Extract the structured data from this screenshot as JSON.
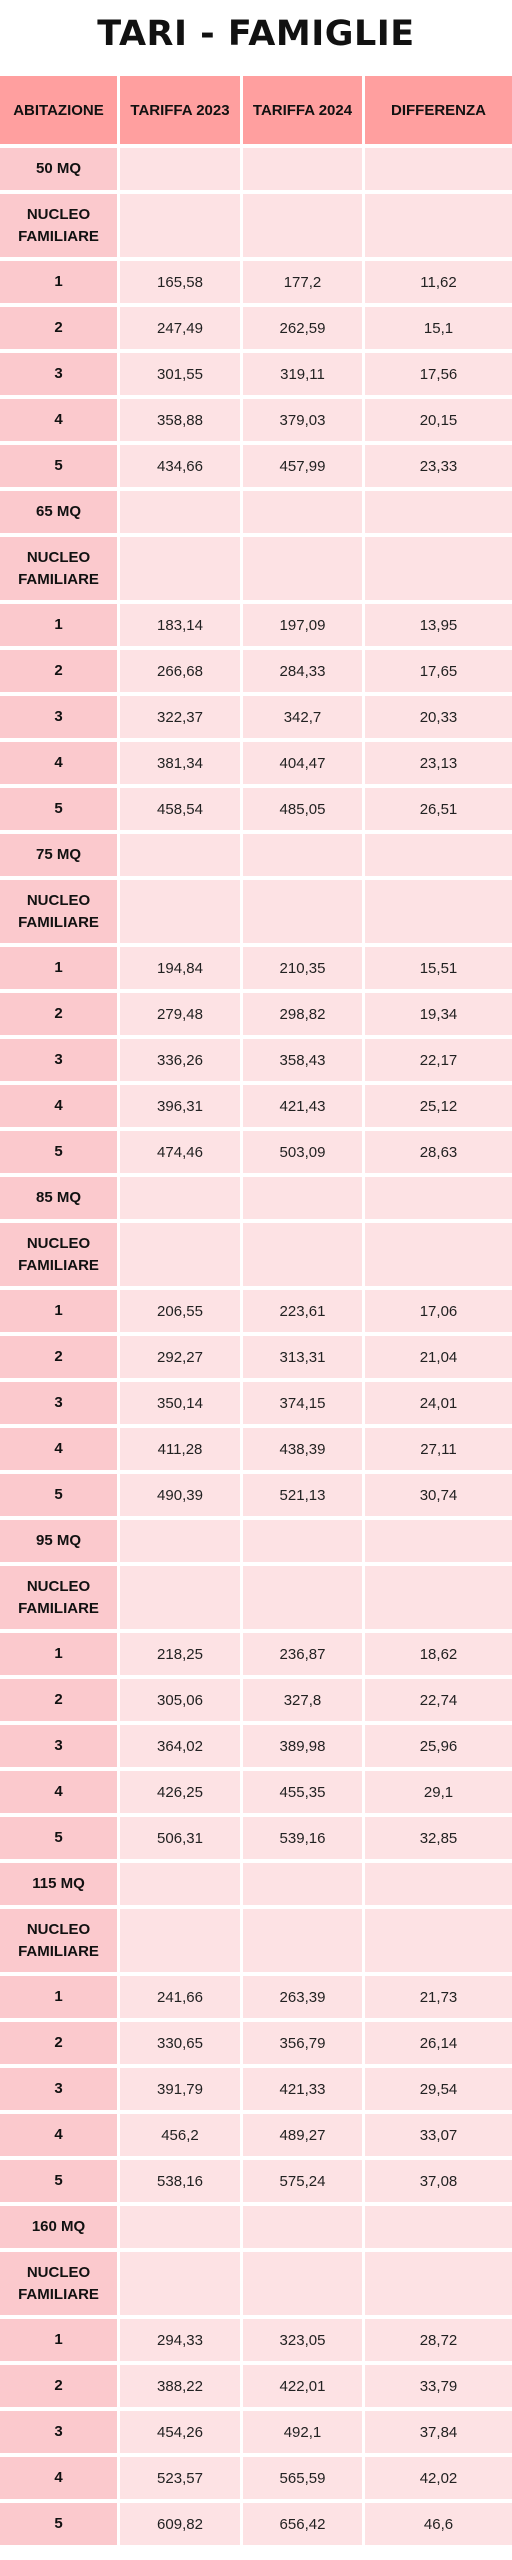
{
  "title": "TARI - FAMIGLIE",
  "colors": {
    "header": "#ff9f9f",
    "first_column": "#fbc9cd",
    "cells": "#fde2e4"
  },
  "headers": [
    "ABITAZIONE",
    "TARIFFA 2023",
    "TARIFFA 2024",
    "DIFFERENZA"
  ],
  "nucleo_label": "NUCLEO FAMILIARE",
  "sections": [
    {
      "size": "50 MQ",
      "rows": [
        {
          "n": "1",
          "t2023": "165,58",
          "t2024": "177,2",
          "diff": "11,62"
        },
        {
          "n": "2",
          "t2023": "247,49",
          "t2024": "262,59",
          "diff": "15,1"
        },
        {
          "n": "3",
          "t2023": "301,55",
          "t2024": "319,11",
          "diff": "17,56"
        },
        {
          "n": "4",
          "t2023": "358,88",
          "t2024": "379,03",
          "diff": "20,15"
        },
        {
          "n": "5",
          "t2023": "434,66",
          "t2024": "457,99",
          "diff": "23,33"
        }
      ]
    },
    {
      "size": "65 MQ",
      "rows": [
        {
          "n": "1",
          "t2023": "183,14",
          "t2024": "197,09",
          "diff": "13,95"
        },
        {
          "n": "2",
          "t2023": "266,68",
          "t2024": "284,33",
          "diff": "17,65"
        },
        {
          "n": "3",
          "t2023": "322,37",
          "t2024": "342,7",
          "diff": "20,33"
        },
        {
          "n": "4",
          "t2023": "381,34",
          "t2024": "404,47",
          "diff": "23,13"
        },
        {
          "n": "5",
          "t2023": "458,54",
          "t2024": "485,05",
          "diff": "26,51"
        }
      ]
    },
    {
      "size": "75 MQ",
      "rows": [
        {
          "n": "1",
          "t2023": "194,84",
          "t2024": "210,35",
          "diff": "15,51"
        },
        {
          "n": "2",
          "t2023": "279,48",
          "t2024": "298,82",
          "diff": "19,34"
        },
        {
          "n": "3",
          "t2023": "336,26",
          "t2024": "358,43",
          "diff": "22,17"
        },
        {
          "n": "4",
          "t2023": "396,31",
          "t2024": "421,43",
          "diff": "25,12"
        },
        {
          "n": "5",
          "t2023": "474,46",
          "t2024": "503,09",
          "diff": "28,63"
        }
      ]
    },
    {
      "size": "85 MQ",
      "rows": [
        {
          "n": "1",
          "t2023": "206,55",
          "t2024": "223,61",
          "diff": "17,06"
        },
        {
          "n": "2",
          "t2023": "292,27",
          "t2024": "313,31",
          "diff": "21,04"
        },
        {
          "n": "3",
          "t2023": "350,14",
          "t2024": "374,15",
          "diff": "24,01"
        },
        {
          "n": "4",
          "t2023": "411,28",
          "t2024": "438,39",
          "diff": "27,11"
        },
        {
          "n": "5",
          "t2023": "490,39",
          "t2024": "521,13",
          "diff": "30,74"
        }
      ]
    },
    {
      "size": "95 MQ",
      "rows": [
        {
          "n": "1",
          "t2023": "218,25",
          "t2024": "236,87",
          "diff": "18,62"
        },
        {
          "n": "2",
          "t2023": "305,06",
          "t2024": "327,8",
          "diff": "22,74"
        },
        {
          "n": "3",
          "t2023": "364,02",
          "t2024": "389,98",
          "diff": "25,96"
        },
        {
          "n": "4",
          "t2023": "426,25",
          "t2024": "455,35",
          "diff": "29,1"
        },
        {
          "n": "5",
          "t2023": "506,31",
          "t2024": "539,16",
          "diff": "32,85"
        }
      ]
    },
    {
      "size": "115 MQ",
      "rows": [
        {
          "n": "1",
          "t2023": "241,66",
          "t2024": "263,39",
          "diff": "21,73"
        },
        {
          "n": "2",
          "t2023": "330,65",
          "t2024": "356,79",
          "diff": "26,14"
        },
        {
          "n": "3",
          "t2023": "391,79",
          "t2024": "421,33",
          "diff": "29,54"
        },
        {
          "n": "4",
          "t2023": "456,2",
          "t2024": "489,27",
          "diff": "33,07"
        },
        {
          "n": "5",
          "t2023": "538,16",
          "t2024": "575,24",
          "diff": "37,08"
        }
      ]
    },
    {
      "size": "160 MQ",
      "rows": [
        {
          "n": "1",
          "t2023": "294,33",
          "t2024": "323,05",
          "diff": "28,72"
        },
        {
          "n": "2",
          "t2023": "388,22",
          "t2024": "422,01",
          "diff": "33,79"
        },
        {
          "n": "3",
          "t2023": "454,26",
          "t2024": "492,1",
          "diff": "37,84"
        },
        {
          "n": "4",
          "t2023": "523,57",
          "t2024": "565,59",
          "diff": "42,02"
        },
        {
          "n": "5",
          "t2023": "609,82",
          "t2024": "656,42",
          "diff": "46,6"
        }
      ]
    }
  ]
}
